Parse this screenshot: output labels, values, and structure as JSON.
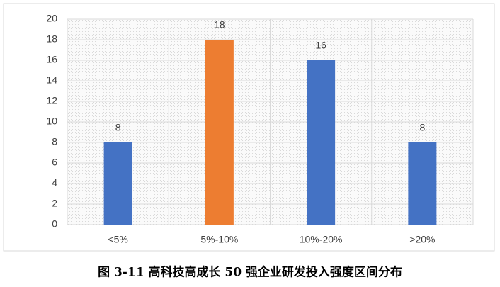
{
  "chart_data": {
    "type": "bar",
    "caption": "图 3-11  高科技高成长 50 强企业研发投入强度区间分布",
    "categories": [
      "<5%",
      "5%-10%",
      "10%-20%",
      ">20%"
    ],
    "values": [
      8,
      18,
      16,
      8
    ],
    "colors": [
      "#4472c4",
      "#ed7d31",
      "#4472c4",
      "#4472c4"
    ],
    "ylim": [
      0,
      20
    ],
    "yticks": [
      0,
      2,
      4,
      6,
      8,
      10,
      12,
      14,
      16,
      18,
      20
    ],
    "grid": true
  }
}
